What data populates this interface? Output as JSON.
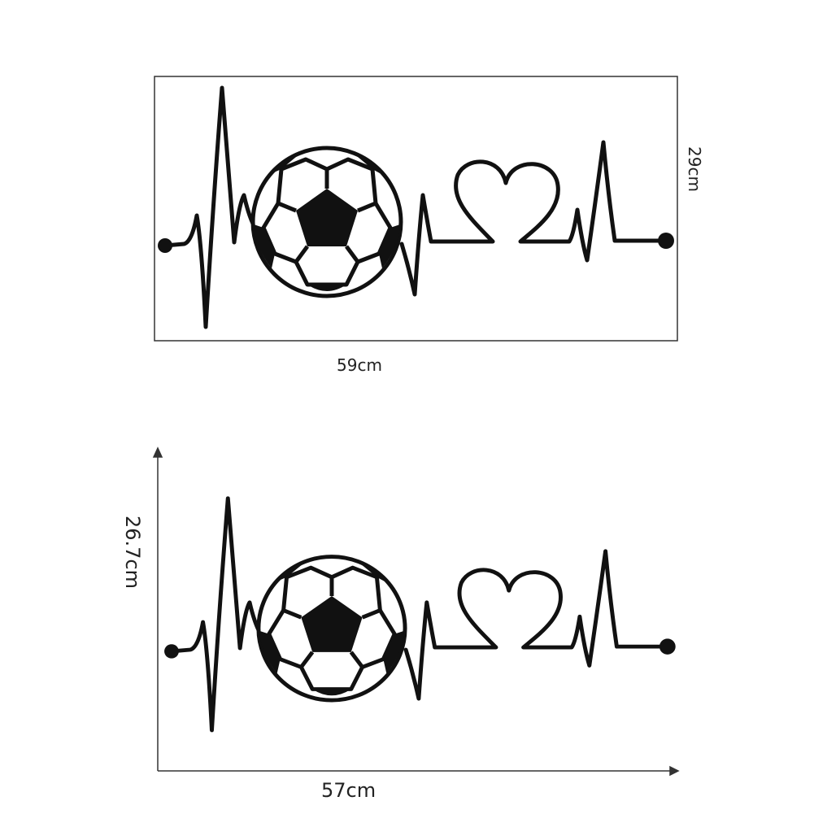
{
  "top": {
    "width_label": "59cm",
    "height_label": "29cm"
  },
  "bottom": {
    "width_label": "57cm",
    "height_label": "26.7cm"
  },
  "colors": {
    "ink": "#111111",
    "frame": "#333333"
  }
}
